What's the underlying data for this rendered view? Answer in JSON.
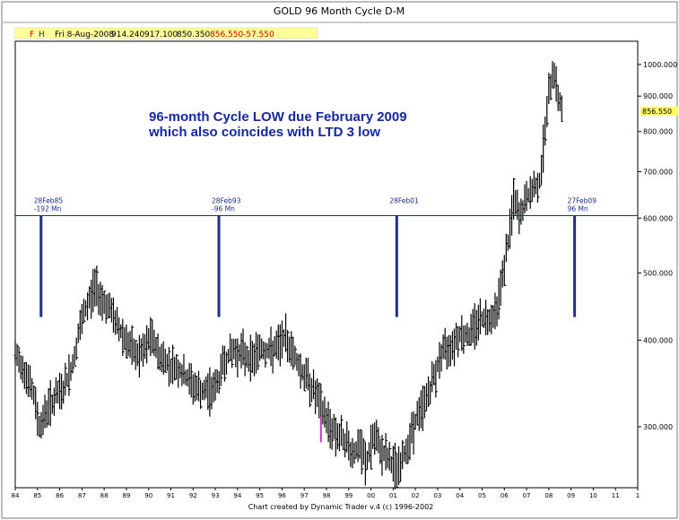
{
  "window": {
    "title": "GOLD 96 Month Cycle  D-M"
  },
  "info_bar": {
    "date": "Fri 8-Aug-2008",
    "open": "914.240",
    "high": "917.100",
    "low": "850.350",
    "close": "856.550",
    "change": "-57.550"
  },
  "annotation": {
    "line1": "96-month Cycle LOW due February 2009",
    "line2": "which also coincides with LTD 3 low"
  },
  "footer": "Chart created by Dynamic Trader v.4  (c) 1996-2002",
  "colors": {
    "price": "#000000",
    "cycle": "#1f2f8a",
    "info_highlight": "#ffff99",
    "close_marker": "#ffff66",
    "purple": "#cc33cc"
  },
  "chart_data": {
    "type": "line",
    "scale": "log",
    "ylim": [
      245,
      1080
    ],
    "xlim": [
      1984.0,
      2012.0
    ],
    "yticks": [
      "1000.000",
      "900.000",
      "800.000",
      "700.000",
      "600.000",
      "500.000",
      "400.000",
      "300.000"
    ],
    "ytick_values": [
      1000,
      900,
      800,
      700,
      600,
      500,
      400,
      300
    ],
    "xticks": [
      "84",
      "85",
      "86",
      "87",
      "88",
      "89",
      "90",
      "91",
      "92",
      "93",
      "94",
      "95",
      "96",
      "97",
      "98",
      "99",
      "00",
      "01",
      "02",
      "03",
      "04",
      "05",
      "06",
      "07",
      "08",
      "09",
      "10",
      "11",
      "1"
    ],
    "xtick_values": [
      1984,
      1985,
      1986,
      1987,
      1988,
      1989,
      1990,
      1991,
      1992,
      1993,
      1994,
      1995,
      1996,
      1997,
      1998,
      1999,
      2000,
      2001,
      2002,
      2003,
      2004,
      2005,
      2006,
      2007,
      2008,
      2009,
      2010,
      2011,
      2012
    ],
    "horizontal_level": 605,
    "close_marker": {
      "label": "856.550",
      "value": 856.55
    },
    "series": [
      {
        "x": [
          1984.0,
          1984.4,
          1984.8,
          1985.1,
          1985.5,
          1985.8,
          1986.2,
          1986.6,
          1986.9,
          1987.3,
          1987.6,
          1987.9,
          1988.3,
          1988.6,
          1989.0,
          1989.4,
          1989.8,
          1990.1,
          1990.5,
          1990.9,
          1991.3,
          1991.6,
          1992.0,
          1992.4,
          1992.8,
          1993.1,
          1993.4,
          1993.8,
          1994.2,
          1994.6,
          1995.0,
          1995.4,
          1995.8,
          1996.1,
          1996.5,
          1996.9,
          1997.2,
          1997.5,
          1997.8,
          1998.2,
          1998.6,
          1998.9,
          1999.2,
          1999.5,
          1999.8,
          2000.1,
          2000.4,
          2000.7,
          2001.0,
          2001.3,
          2001.6,
          2002.0,
          2002.4,
          2002.8,
          2003.2,
          2003.6,
          2004.0,
          2004.4,
          2004.8,
          2005.2,
          2005.6,
          2005.9,
          2006.2,
          2006.4,
          2006.7,
          2007.0,
          2007.3,
          2007.6,
          2007.8,
          2008.0,
          2008.2,
          2008.4,
          2008.6
        ],
        "values": [
          380,
          365,
          335,
          300,
          322,
          330,
          342,
          370,
          415,
          455,
          480,
          460,
          440,
          420,
          400,
          380,
          385,
          405,
          380,
          370,
          365,
          355,
          345,
          335,
          340,
          345,
          375,
          385,
          385,
          375,
          390,
          385,
          390,
          405,
          385,
          360,
          350,
          335,
          318,
          300,
          290,
          285,
          275,
          280,
          265,
          290,
          280,
          272,
          264,
          262,
          280,
          305,
          325,
          350,
          385,
          395,
          410,
          405,
          430,
          430,
          440,
          490,
          560,
          640,
          600,
          640,
          660,
          680,
          790,
          900,
          1000,
          900,
          856
        ]
      }
    ],
    "cycle_markers": [
      {
        "date": "28Feb85",
        "sub": "-192 Mn",
        "x": 1985.16,
        "bottom": 432
      },
      {
        "date": "28Feb93",
        "sub": "-96 Mn",
        "x": 1993.16,
        "bottom": 432
      },
      {
        "date": "28Feb01",
        "sub": "",
        "x": 2001.16,
        "bottom": 432
      },
      {
        "date": "27Feb09",
        "sub": "96 Mn",
        "x": 2009.16,
        "bottom": 432
      }
    ],
    "purple_segment": {
      "x": 1997.75,
      "from": 285,
      "to": 310
    }
  }
}
